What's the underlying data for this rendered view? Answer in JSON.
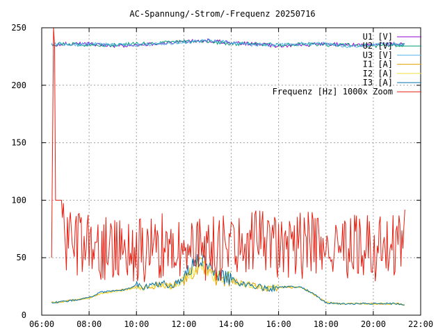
{
  "chart_data": {
    "type": "line",
    "title": "AC-Spannung/-Strom/-Frequenz 20250716",
    "xlabel": "",
    "ylabel": "",
    "x_range": [
      "06:00",
      "22:00"
    ],
    "x_ticks": [
      "06:00",
      "08:00",
      "10:00",
      "12:00",
      "14:00",
      "16:00",
      "18:00",
      "20:00",
      "22:00"
    ],
    "y_range": [
      0,
      250
    ],
    "y_ticks": [
      0,
      50,
      100,
      150,
      200,
      250
    ],
    "grid": true,
    "legend_position": "top-right",
    "data_start": "06:25",
    "data_end": "21:20",
    "series": [
      {
        "name": "U1 [V]",
        "color": "#9400d3",
        "x": [
          "06:25",
          "07:00",
          "08:00",
          "09:00",
          "10:00",
          "11:00",
          "12:00",
          "13:00",
          "14:00",
          "15:00",
          "16:00",
          "17:00",
          "18:00",
          "19:00",
          "20:00",
          "21:00",
          "21:20"
        ],
        "values": [
          235,
          236,
          236,
          234,
          235,
          236,
          238,
          239,
          237,
          236,
          234,
          235,
          236,
          235,
          235,
          236,
          236
        ]
      },
      {
        "name": "U2 [V]",
        "color": "#009e73",
        "x": [
          "06:25",
          "07:00",
          "08:00",
          "09:00",
          "10:00",
          "11:00",
          "12:00",
          "13:00",
          "14:00",
          "15:00",
          "16:00",
          "17:00",
          "18:00",
          "19:00",
          "20:00",
          "21:00",
          "21:20"
        ],
        "values": [
          236,
          236,
          235,
          235,
          236,
          237,
          238,
          238,
          236,
          236,
          235,
          236,
          235,
          235,
          234,
          235,
          235
        ]
      },
      {
        "name": "U3 [V]",
        "color": "#56b4e9",
        "x": [
          "06:25",
          "07:00",
          "08:00",
          "09:00",
          "10:00",
          "11:00",
          "12:00",
          "13:00",
          "14:00",
          "15:00",
          "16:00",
          "17:00",
          "18:00",
          "19:00",
          "20:00",
          "21:00",
          "21:20"
        ],
        "values": [
          236,
          235,
          236,
          235,
          235,
          236,
          237,
          239,
          237,
          235,
          235,
          236,
          236,
          234,
          235,
          236,
          235
        ]
      },
      {
        "name": "I1 [A]",
        "color": "#e69f00",
        "x": [
          "06:25",
          "06:30",
          "07:00",
          "08:00",
          "08:30",
          "09:00",
          "09:30",
          "10:00",
          "10:30",
          "11:00",
          "11:30",
          "12:00",
          "12:20",
          "12:40",
          "13:00",
          "13:20",
          "13:40",
          "14:00",
          "14:30",
          "15:00",
          "15:30",
          "16:00",
          "16:30",
          "17:00",
          "17:30",
          "18:00",
          "18:30",
          "19:00",
          "20:00",
          "21:00",
          "21:20"
        ],
        "values": [
          11,
          11,
          12,
          15,
          19,
          21,
          22,
          25,
          24,
          27,
          25,
          31,
          38,
          44,
          40,
          33,
          32,
          31,
          27,
          25,
          23,
          24,
          24,
          24,
          18,
          11,
          10,
          10,
          10,
          10,
          9
        ]
      },
      {
        "name": "I2 [A]",
        "color": "#f0e442",
        "x": [
          "06:25",
          "06:30",
          "07:00",
          "08:00",
          "08:30",
          "09:00",
          "09:30",
          "10:00",
          "10:30",
          "11:00",
          "11:30",
          "12:00",
          "12:20",
          "12:40",
          "13:00",
          "13:20",
          "13:40",
          "14:00",
          "14:30",
          "15:00",
          "15:30",
          "16:00",
          "16:30",
          "17:00",
          "17:30",
          "18:00",
          "18:30",
          "19:00",
          "20:00",
          "21:00",
          "21:20"
        ],
        "values": [
          11,
          11,
          12,
          15,
          19,
          20,
          22,
          24,
          24,
          27,
          25,
          31,
          38,
          45,
          41,
          34,
          32,
          31,
          27,
          25,
          23,
          24,
          25,
          24,
          18,
          11,
          10,
          10,
          10,
          10,
          9
        ]
      },
      {
        "name": "I3 [A]",
        "color": "#0072b2",
        "x": [
          "06:25",
          "06:30",
          "07:00",
          "08:00",
          "08:30",
          "09:00",
          "09:30",
          "10:00",
          "10:30",
          "11:00",
          "11:30",
          "12:00",
          "12:20",
          "12:40",
          "13:00",
          "13:20",
          "13:40",
          "14:00",
          "14:30",
          "15:00",
          "15:30",
          "16:00",
          "16:30",
          "17:00",
          "17:30",
          "18:00",
          "18:30",
          "19:00",
          "20:00",
          "21:00",
          "21:20"
        ],
        "values": [
          11,
          11,
          12,
          15,
          20,
          21,
          22,
          26,
          24,
          28,
          25,
          32,
          42,
          50,
          44,
          35,
          33,
          31,
          27,
          25,
          23,
          24,
          25,
          24,
          18,
          11,
          10,
          10,
          10,
          10,
          9
        ]
      },
      {
        "name": "Frequenz [Hz] 1000x Zoom",
        "color": "#e51e10",
        "x": [
          "06:25",
          "06:30",
          "07:00",
          "08:00",
          "09:00",
          "10:00",
          "11:00",
          "12:00",
          "13:00",
          "14:00",
          "15:00",
          "16:00",
          "17:00",
          "18:00",
          "19:00",
          "20:00",
          "21:00",
          "21:20"
        ],
        "values": [
          50,
          250,
          60,
          58,
          57,
          56,
          62,
          60,
          58,
          60,
          62,
          58,
          61,
          58,
          57,
          59,
          62,
          65
        ]
      }
    ]
  }
}
